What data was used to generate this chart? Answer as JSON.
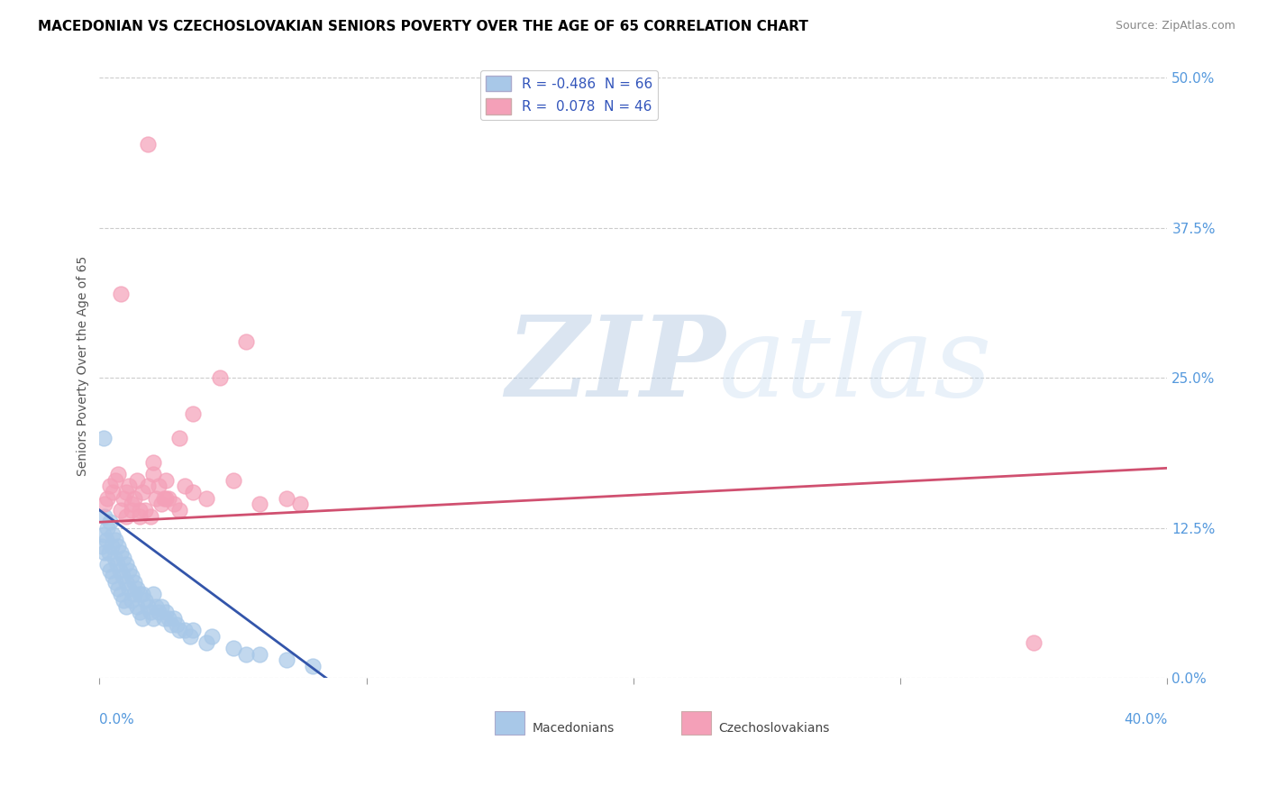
{
  "title": "MACEDONIAN VS CZECHOSLOVAKIAN SENIORS POVERTY OVER THE AGE OF 65 CORRELATION CHART",
  "source": "Source: ZipAtlas.com",
  "ylabel": "Seniors Poverty Over the Age of 65",
  "ytick_values": [
    0.0,
    12.5,
    25.0,
    37.5,
    50.0
  ],
  "xlim": [
    0.0,
    40.0
  ],
  "ylim": [
    0.0,
    52.0
  ],
  "macedonian_R": -0.486,
  "macedonian_N": 66,
  "czechoslovakian_R": 0.078,
  "czechoslovakian_N": 46,
  "macedonian_color": "#a8c8e8",
  "czechoslovakian_color": "#f4a0b8",
  "macedonian_line_color": "#3355aa",
  "czechoslovakian_line_color": "#d05070",
  "watermark_zip": "ZIP",
  "watermark_atlas": "atlas",
  "macedonian_x": [
    0.1,
    0.15,
    0.2,
    0.2,
    0.25,
    0.3,
    0.3,
    0.35,
    0.4,
    0.4,
    0.45,
    0.5,
    0.5,
    0.55,
    0.6,
    0.6,
    0.65,
    0.7,
    0.7,
    0.75,
    0.8,
    0.8,
    0.85,
    0.9,
    0.9,
    1.0,
    1.0,
    1.0,
    1.1,
    1.1,
    1.2,
    1.2,
    1.3,
    1.3,
    1.4,
    1.4,
    1.5,
    1.5,
    1.6,
    1.6,
    1.7,
    1.8,
    1.9,
    2.0,
    2.0,
    2.1,
    2.2,
    2.3,
    2.4,
    2.5,
    2.6,
    2.7,
    2.8,
    2.9,
    3.0,
    3.2,
    3.4,
    3.5,
    4.0,
    4.2,
    5.0,
    5.5,
    6.0,
    7.0,
    8.0,
    0.15
  ],
  "macedonian_y": [
    11.0,
    12.0,
    13.5,
    10.5,
    11.5,
    12.5,
    9.5,
    10.5,
    13.0,
    9.0,
    11.0,
    12.0,
    8.5,
    10.0,
    11.5,
    8.0,
    9.5,
    11.0,
    7.5,
    9.0,
    10.5,
    7.0,
    8.5,
    10.0,
    6.5,
    9.5,
    8.0,
    6.0,
    9.0,
    7.5,
    8.5,
    6.5,
    8.0,
    7.0,
    7.5,
    6.0,
    7.0,
    5.5,
    7.0,
    5.0,
    6.5,
    6.0,
    5.5,
    7.0,
    5.0,
    6.0,
    5.5,
    6.0,
    5.0,
    5.5,
    5.0,
    4.5,
    5.0,
    4.5,
    4.0,
    4.0,
    3.5,
    4.0,
    3.0,
    3.5,
    2.5,
    2.0,
    2.0,
    1.5,
    1.0,
    20.0
  ],
  "czechoslovakian_x": [
    0.2,
    0.3,
    0.4,
    0.5,
    0.6,
    0.7,
    0.8,
    0.9,
    1.0,
    1.0,
    1.1,
    1.2,
    1.3,
    1.4,
    1.5,
    1.6,
    1.7,
    1.8,
    1.9,
    2.0,
    2.1,
    2.2,
    2.3,
    2.4,
    2.5,
    2.6,
    2.8,
    3.0,
    3.2,
    3.5,
    4.0,
    5.0,
    6.0,
    7.0,
    1.2,
    1.5,
    2.0,
    2.5,
    3.0,
    3.5,
    4.5,
    5.5,
    0.8,
    1.8,
    35.0,
    7.5
  ],
  "czechoslovakian_y": [
    14.5,
    15.0,
    16.0,
    15.5,
    16.5,
    17.0,
    14.0,
    15.0,
    15.5,
    13.5,
    16.0,
    14.5,
    15.0,
    16.5,
    14.0,
    15.5,
    14.0,
    16.0,
    13.5,
    17.0,
    15.0,
    16.0,
    14.5,
    15.0,
    16.5,
    15.0,
    14.5,
    14.0,
    16.0,
    15.5,
    15.0,
    16.5,
    14.5,
    15.0,
    14.0,
    13.5,
    18.0,
    15.0,
    20.0,
    22.0,
    25.0,
    28.0,
    32.0,
    44.5,
    3.0,
    14.5
  ]
}
